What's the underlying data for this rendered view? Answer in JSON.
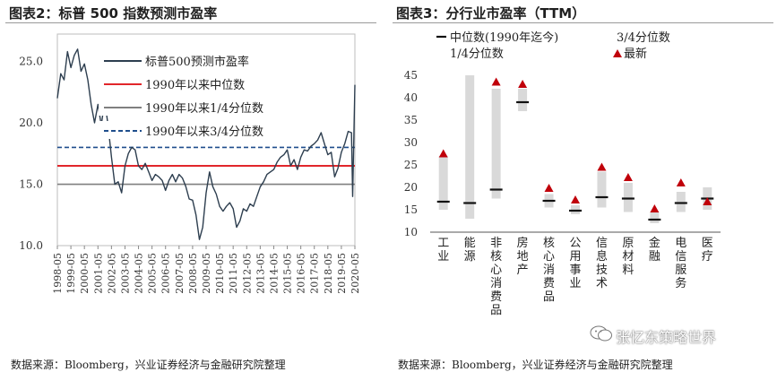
{
  "left": {
    "title": "图表2：标普 500 指数预测市盈率",
    "source": "数据来源：Bloomberg，兴业证券经济与金融研究院整理"
  },
  "right": {
    "title": "图表3：分行业市盈率（TTM）",
    "source": "数据来源：Bloomberg，兴业证券经济与金融研究院整理"
  },
  "watermark": "张忆东策略世界",
  "colors": {
    "pe_line": "#2d3e4f",
    "median": "#e1262b",
    "q1": "#7f7f7f",
    "q3": "#1f4e8c",
    "range_bar": "#d9d9d9",
    "latest": "#c0000a"
  },
  "chart_data": [
    {
      "type": "line",
      "title": "标普 500 指数预测市盈率",
      "x_ticks": [
        "1998-05",
        "1999-05",
        "2000-05",
        "2001-05",
        "2002-05",
        "2003-05",
        "2004-05",
        "2005-05",
        "2006-05",
        "2007-05",
        "2008-05",
        "2009-05",
        "2010-05",
        "2011-05",
        "2012-05",
        "2013-05",
        "2014-05",
        "2015-05",
        "2016-05",
        "2017-05",
        "2018-05",
        "2019-05",
        "2020-05"
      ],
      "y_ticks": [
        "25.0",
        "20.0",
        "15.0",
        "10.0"
      ],
      "ylim": [
        10,
        26.5
      ],
      "legend_position": "top",
      "series": [
        {
          "name": "标普500预测市盈率",
          "x": [
            "1998-05",
            "1998-08",
            "1998-11",
            "1999-02",
            "1999-05",
            "1999-08",
            "1999-11",
            "2000-02",
            "2000-05",
            "2000-08",
            "2000-11",
            "2001-02",
            "2001-05",
            "2001-08",
            "2001-11",
            "2002-02",
            "2002-05",
            "2002-08",
            "2002-11",
            "2003-02",
            "2003-05",
            "2003-08",
            "2003-11",
            "2004-02",
            "2004-05",
            "2004-08",
            "2004-11",
            "2005-02",
            "2005-05",
            "2005-08",
            "2005-11",
            "2006-02",
            "2006-05",
            "2006-08",
            "2006-11",
            "2007-02",
            "2007-05",
            "2007-08",
            "2007-11",
            "2008-02",
            "2008-05",
            "2008-08",
            "2008-11",
            "2009-02",
            "2009-05",
            "2009-08",
            "2009-11",
            "2010-02",
            "2010-05",
            "2010-08",
            "2010-11",
            "2011-02",
            "2011-05",
            "2011-08",
            "2011-11",
            "2012-02",
            "2012-05",
            "2012-08",
            "2012-11",
            "2013-02",
            "2013-05",
            "2013-08",
            "2013-11",
            "2014-02",
            "2014-05",
            "2014-08",
            "2014-11",
            "2015-02",
            "2015-05",
            "2015-08",
            "2015-11",
            "2016-02",
            "2016-05",
            "2016-08",
            "2016-11",
            "2017-02",
            "2017-05",
            "2017-08",
            "2017-11",
            "2018-02",
            "2018-05",
            "2018-08",
            "2018-11",
            "2019-02",
            "2019-05",
            "2019-08",
            "2019-11",
            "2020-02",
            "2020-03",
            "2020-05"
          ],
          "values": [
            22.0,
            24.0,
            23.5,
            25.8,
            24.5,
            25.5,
            26.0,
            24.2,
            24.8,
            23.5,
            21.5,
            20.0,
            21.5,
            19.8,
            21.8,
            19.8,
            17.2,
            15.0,
            15.2,
            14.3,
            16.5,
            17.5,
            18.0,
            17.8,
            16.5,
            16.2,
            16.7,
            16.0,
            15.3,
            15.8,
            15.6,
            15.3,
            14.5,
            15.3,
            15.8,
            15.2,
            15.8,
            15.5,
            14.8,
            13.8,
            13.7,
            12.5,
            10.5,
            11.5,
            14.3,
            16.0,
            14.8,
            14.2,
            13.2,
            12.8,
            13.2,
            13.5,
            13.0,
            11.5,
            12.0,
            13.0,
            12.8,
            13.4,
            13.2,
            14.0,
            14.8,
            15.2,
            15.8,
            16.0,
            16.2,
            16.8,
            17.2,
            17.4,
            17.8,
            16.5,
            17.0,
            16.2,
            17.2,
            17.8,
            17.7,
            18.1,
            18.3,
            18.6,
            19.2,
            18.3,
            17.4,
            17.6,
            15.6,
            16.3,
            17.6,
            18.3,
            19.3,
            19.2,
            14.0,
            23.1
          ]
        },
        {
          "name": "1990年以来中位数",
          "value": 16.5
        },
        {
          "name": "1990年以来1/4分位数",
          "value": 15.0
        },
        {
          "name": "1990年以来3/4分位数",
          "value": 18.0
        }
      ]
    },
    {
      "type": "bar",
      "title": "分行业市盈率（TTM）",
      "categories": [
        "工业",
        "能源",
        "非核心消费品",
        "房地产",
        "核心消费品",
        "公用事业",
        "信息技术",
        "原材料",
        "金融",
        "电信服务",
        "医疗"
      ],
      "y_ticks": [
        "45",
        "40",
        "35",
        "30",
        "25",
        "20",
        "15",
        "10"
      ],
      "ylim": [
        10,
        45
      ],
      "legend_position": "top",
      "legend": {
        "median": "中位数(1990年迄今)",
        "q3": "3/4分位数",
        "q1": "1/4分位数",
        "latest": "最新"
      },
      "q1": [
        15.0,
        13.0,
        17.5,
        37.0,
        15.5,
        14.0,
        15.5,
        14.5,
        12.0,
        14.5,
        15.0
      ],
      "q3": [
        27.0,
        45.0,
        42.0,
        42.0,
        18.5,
        16.0,
        23.5,
        21.0,
        14.5,
        19.0,
        20.0
      ],
      "median": [
        16.8,
        16.5,
        19.5,
        39.0,
        17.0,
        14.8,
        17.8,
        17.5,
        12.8,
        16.5,
        17.5
      ],
      "latest": [
        27.5,
        null,
        43.5,
        43.0,
        19.8,
        17.2,
        24.5,
        22.2,
        15.2,
        21.0,
        16.8
      ]
    }
  ]
}
